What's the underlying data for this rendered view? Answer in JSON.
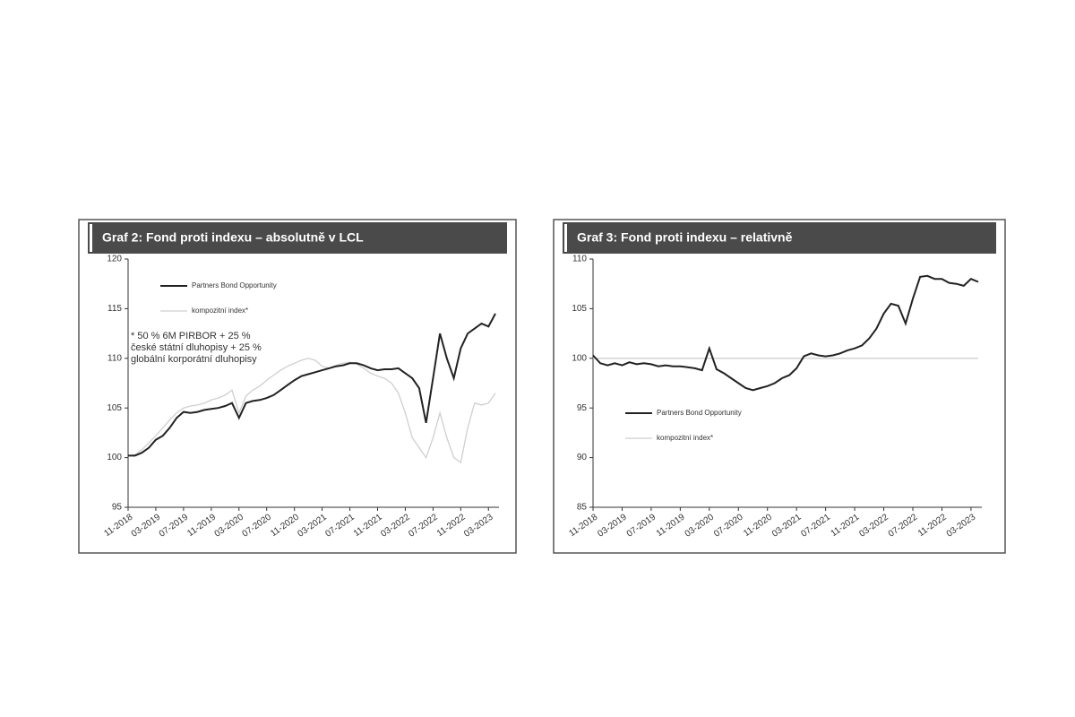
{
  "chart_data": [
    {
      "type": "line",
      "title": "Graf 2: Fond proti indexu – absolutně v LCL",
      "annotation_lines": [
        "* 50 % 6M PIRBOR + 25 %",
        "české státní dluhopisy + 25 %",
        "globální korporátní dluhopisy"
      ],
      "legend": "upper left",
      "categories": [
        "11-2018",
        null,
        null,
        null,
        "03-2019",
        null,
        null,
        null,
        "07-2019",
        null,
        null,
        null,
        "11-2019",
        null,
        null,
        null,
        "03-2020",
        null,
        null,
        null,
        "07-2020",
        null,
        null,
        null,
        "11-2020",
        null,
        null,
        null,
        "03-2021",
        null,
        null,
        null,
        "07-2021",
        null,
        null,
        null,
        "11-2021",
        null,
        null,
        null,
        "03-2022",
        null,
        null,
        null,
        "07-2022",
        null,
        null,
        null,
        "11-2022",
        null,
        null,
        null,
        "03-2023",
        null
      ],
      "series": [
        {
          "name": "Partners Bond Opportunity",
          "color": "#222222",
          "values": [
            100.2,
            100.2,
            100.5,
            101,
            101.8,
            102.2,
            103,
            104,
            104.6,
            104.5,
            104.6,
            104.8,
            104.9,
            105,
            105.2,
            105.5,
            104,
            105.5,
            105.7,
            105.8,
            106,
            106.3,
            106.8,
            107.3,
            107.8,
            108.2,
            108.4,
            108.6,
            108.8,
            109,
            109.2,
            109.3,
            109.5,
            109.5,
            109.3,
            109,
            108.8,
            108.9,
            108.9,
            109,
            108.5,
            108,
            107,
            103.5,
            108,
            112.5,
            110,
            108,
            111,
            112.5,
            113,
            113.5,
            113.2,
            114.5
          ]
        },
        {
          "name": "kompozitní index*",
          "color": "#cfcfcf",
          "values": [
            100.2,
            100.3,
            100.8,
            101.5,
            102.2,
            103,
            103.8,
            104.5,
            105,
            105.2,
            105.3,
            105.5,
            105.8,
            106,
            106.3,
            106.8,
            104.5,
            106.2,
            106.8,
            107.2,
            107.8,
            108.3,
            108.8,
            109.2,
            109.5,
            109.8,
            110,
            109.8,
            109.2,
            109,
            109.3,
            109.5,
            109.6,
            109.4,
            109,
            108.5,
            108.2,
            108,
            107.5,
            106.5,
            104.5,
            102,
            101,
            100,
            102,
            104.5,
            102,
            100,
            99.5,
            103,
            105.5,
            105.3,
            105.5,
            106.5
          ]
        }
      ],
      "ylim": [
        95,
        120
      ],
      "yticks": [
        95,
        100,
        105,
        110,
        115,
        120
      ]
    },
    {
      "type": "line",
      "title": "Graf 3: Fond proti indexu – relativně",
      "legend": "lower left",
      "categories": [
        "11-2018",
        null,
        null,
        null,
        "03-2019",
        null,
        null,
        null,
        "07-2019",
        null,
        null,
        null,
        "11-2019",
        null,
        null,
        null,
        "03-2020",
        null,
        null,
        null,
        "07-2020",
        null,
        null,
        null,
        "11-2020",
        null,
        null,
        null,
        "03-2021",
        null,
        null,
        null,
        "07-2021",
        null,
        null,
        null,
        "11-2021",
        null,
        null,
        null,
        "03-2022",
        null,
        null,
        null,
        "07-2022",
        null,
        null,
        null,
        "11-2022",
        null,
        null,
        null,
        "03-2023",
        null
      ],
      "series": [
        {
          "name": "Partners Bond Opportunity",
          "color": "#222222",
          "values": [
            100.3,
            99.5,
            99.3,
            99.5,
            99.3,
            99.6,
            99.4,
            99.5,
            99.4,
            99.2,
            99.3,
            99.2,
            99.2,
            99.1,
            99,
            98.8,
            101,
            98.9,
            98.5,
            98,
            97.5,
            97,
            96.8,
            97,
            97.2,
            97.5,
            98,
            98.3,
            99,
            100.2,
            100.5,
            100.3,
            100.2,
            100.3,
            100.5,
            100.8,
            101,
            101.3,
            102,
            103,
            104.5,
            105.5,
            105.3,
            103.5,
            106,
            108.2,
            108.3,
            108,
            108,
            107.6,
            107.5,
            107.3,
            108,
            107.7
          ]
        },
        {
          "name": "kompozitní index*",
          "color": "#cfcfcf",
          "values": [
            100,
            100,
            100,
            100,
            100,
            100,
            100,
            100,
            100,
            100,
            100,
            100,
            100,
            100,
            100,
            100,
            100,
            100,
            100,
            100,
            100,
            100,
            100,
            100,
            100,
            100,
            100,
            100,
            100,
            100,
            100,
            100,
            100,
            100,
            100,
            100,
            100,
            100,
            100,
            100,
            100,
            100,
            100,
            100,
            100,
            100,
            100,
            100,
            100,
            100,
            100,
            100,
            100,
            100
          ]
        }
      ],
      "ylim": [
        85,
        110
      ],
      "yticks": [
        85,
        90,
        95,
        100,
        105,
        110
      ]
    }
  ]
}
